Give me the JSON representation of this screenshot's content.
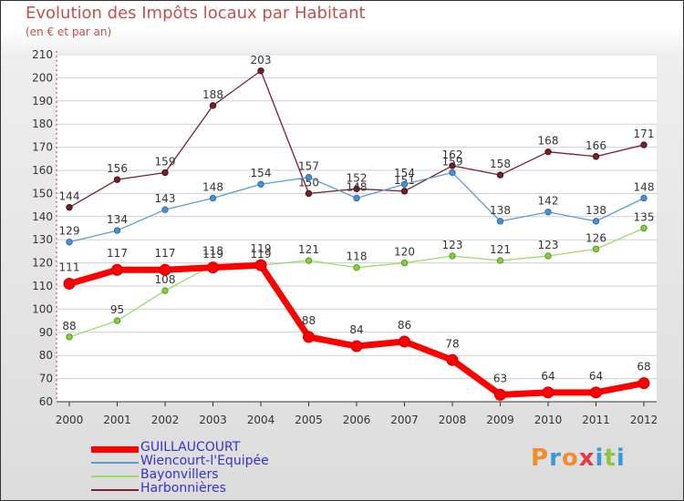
{
  "header": {
    "title": "Evolution des Impôts locaux par Habitant",
    "subtitle": "(en € et par an)"
  },
  "logo": {
    "text": "Proxiti",
    "colors": [
      "#f28c28",
      "#3a9ad9",
      "#f28c28",
      "#e63946",
      "#3a9ad9",
      "#8cc63f",
      "#3a9ad9"
    ]
  },
  "chart_data": {
    "type": "line",
    "title": "Evolution des Impôts locaux par Habitant",
    "subtitle": "(en € et par an)",
    "xlabel": "",
    "ylabel": "",
    "categories": [
      "2000",
      "2001",
      "2002",
      "2003",
      "2004",
      "2005",
      "2006",
      "2007",
      "2008",
      "2009",
      "2010",
      "2011",
      "2012"
    ],
    "ylim": [
      60,
      210
    ],
    "yticks": [
      "60",
      "70",
      "80",
      "90",
      "100",
      "110",
      "120",
      "130",
      "140",
      "150",
      "160",
      "170",
      "180",
      "190",
      "200",
      "210"
    ],
    "grid": "horizontal",
    "legend_position": "bottom-left",
    "series": [
      {
        "name": "GUILLAUCOURT",
        "color": "#ff0000",
        "values": [
          111,
          117,
          117,
          118,
          119,
          88,
          84,
          86,
          78,
          63,
          64,
          64,
          68
        ]
      },
      {
        "name": "Wiencourt-l'Equipée",
        "color": "#5b9bd5",
        "values": [
          129,
          134,
          143,
          148,
          154,
          157,
          148,
          154,
          159,
          138,
          142,
          138,
          148
        ]
      },
      {
        "name": "Bayonvillers",
        "color": "#99dd66",
        "values": [
          88,
          95,
          108,
          119,
          119,
          121,
          118,
          120,
          123,
          121,
          123,
          126,
          135
        ]
      },
      {
        "name": "Harbonnières",
        "color": "#7a1f2b",
        "values": [
          144,
          156,
          159,
          188,
          203,
          150,
          152,
          151,
          162,
          158,
          168,
          166,
          171
        ]
      }
    ]
  }
}
